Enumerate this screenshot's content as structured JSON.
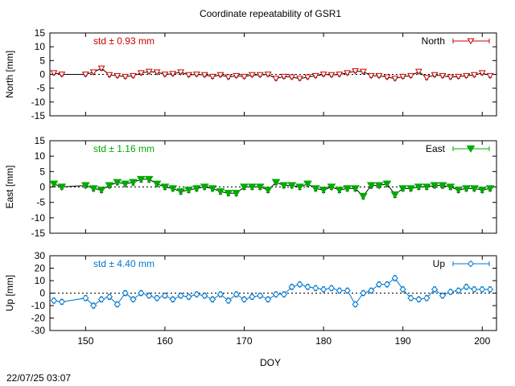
{
  "title": "Coordinate repeatability of GSR1",
  "xlabel": "DOY",
  "timestamp": "22/07/25 03:07",
  "x_ticks": [
    150,
    160,
    170,
    180,
    190,
    200
  ],
  "chart_data": [
    {
      "type": "line",
      "ylabel": "North [mm]",
      "legend": "North",
      "std_label": "std ± 0.93 mm",
      "color": "#cc0000",
      "secondary_color": "#000000",
      "marker": "triangle-down-open",
      "ylim": [
        -15,
        15
      ],
      "yticks": [
        -15,
        -10,
        -5,
        0,
        5,
        10,
        15
      ],
      "xlim": [
        145.5,
        201.8
      ],
      "legend_position": "top-right",
      "reference_line": 0,
      "x": [
        146,
        147,
        150,
        151,
        152,
        153,
        154,
        155,
        156,
        157,
        158,
        159,
        160,
        161,
        162,
        163,
        164,
        165,
        166,
        167,
        168,
        169,
        170,
        171,
        172,
        173,
        174,
        175,
        176,
        177,
        178,
        179,
        180,
        181,
        182,
        183,
        184,
        185,
        186,
        187,
        188,
        189,
        190,
        191,
        192,
        193,
        194,
        195,
        196,
        197,
        198,
        199,
        200,
        201
      ],
      "y": [
        0.5,
        0.0,
        0.0,
        0.8,
        2.2,
        -0.2,
        -0.5,
        -0.8,
        -0.5,
        0.5,
        1.0,
        0.8,
        0.0,
        0.2,
        0.8,
        -0.2,
        0.0,
        -0.2,
        -0.8,
        -0.2,
        -1.0,
        -0.5,
        -0.8,
        -0.2,
        -0.2,
        0.0,
        -1.5,
        -0.8,
        -1.0,
        -1.5,
        -1.0,
        -0.5,
        0.0,
        -0.2,
        0.0,
        0.5,
        1.2,
        1.0,
        -0.5,
        -0.5,
        -1.0,
        -1.5,
        -0.8,
        -0.5,
        1.0,
        -1.2,
        -0.2,
        -0.5,
        -1.0,
        -0.8,
        -0.5,
        -0.2,
        0.5,
        -0.5
      ],
      "err": [
        0.6,
        0.6,
        0.6,
        0.7,
        0.7,
        0.6,
        0.6,
        0.6,
        0.6,
        0.6,
        0.6,
        0.6,
        0.6,
        0.6,
        0.6,
        0.6,
        0.6,
        0.6,
        0.6,
        0.6,
        0.6,
        0.6,
        0.6,
        0.6,
        0.6,
        0.6,
        0.6,
        0.6,
        0.6,
        0.6,
        0.6,
        0.6,
        0.6,
        0.6,
        0.6,
        0.6,
        0.6,
        0.6,
        0.6,
        0.6,
        0.6,
        0.6,
        0.6,
        0.6,
        0.6,
        0.6,
        0.6,
        0.6,
        0.6,
        0.6,
        0.6,
        0.6,
        0.6,
        0.6
      ]
    },
    {
      "type": "line",
      "ylabel": "East [mm]",
      "legend": "East",
      "std_label": "std ± 1.16 mm",
      "color": "#00aa00",
      "secondary_color": "#000000",
      "marker": "triangle-down-filled",
      "ylim": [
        -15,
        15
      ],
      "yticks": [
        -15,
        -10,
        -5,
        0,
        5,
        10,
        15
      ],
      "xlim": [
        145.5,
        201.8
      ],
      "legend_position": "top-right",
      "reference_line": 0,
      "x": [
        146,
        147,
        150,
        151,
        152,
        153,
        154,
        155,
        156,
        157,
        158,
        159,
        160,
        161,
        162,
        163,
        164,
        165,
        166,
        167,
        168,
        169,
        170,
        171,
        172,
        173,
        174,
        175,
        176,
        177,
        178,
        179,
        180,
        181,
        182,
        183,
        184,
        185,
        186,
        187,
        188,
        189,
        190,
        191,
        192,
        193,
        194,
        195,
        196,
        197,
        198,
        199,
        200,
        201
      ],
      "y": [
        1.0,
        0.0,
        0.5,
        -0.5,
        -1.0,
        0.5,
        1.5,
        1.0,
        1.5,
        2.5,
        2.5,
        1.0,
        0.0,
        -0.5,
        -1.5,
        -1.0,
        -0.5,
        0.0,
        -0.5,
        -1.5,
        -2.0,
        -2.0,
        0.0,
        0.0,
        0.0,
        -1.0,
        1.5,
        0.5,
        0.5,
        0.0,
        1.0,
        -0.5,
        -1.0,
        0.0,
        -1.0,
        -0.5,
        -0.5,
        -3.0,
        0.5,
        0.5,
        1.0,
        -2.5,
        -0.5,
        -0.5,
        0.0,
        0.0,
        0.5,
        0.5,
        0.0,
        -1.0,
        -0.5,
        -0.5,
        -1.0,
        -0.5
      ],
      "err": [
        0.8,
        0.7,
        0.8,
        0.8,
        0.8,
        0.8,
        0.8,
        0.8,
        0.9,
        0.9,
        0.9,
        0.8,
        0.8,
        0.8,
        0.8,
        0.8,
        0.8,
        0.8,
        0.8,
        0.8,
        0.8,
        0.8,
        0.8,
        0.8,
        0.8,
        0.8,
        0.8,
        0.8,
        0.8,
        0.8,
        0.9,
        0.8,
        0.8,
        0.8,
        0.8,
        0.8,
        0.8,
        0.9,
        0.9,
        0.8,
        0.9,
        0.9,
        0.8,
        0.8,
        0.8,
        0.8,
        0.8,
        0.9,
        0.8,
        0.8,
        0.8,
        0.8,
        0.8,
        0.8
      ]
    },
    {
      "type": "line",
      "ylabel": "Up [mm]",
      "legend": "Up",
      "std_label": "std ± 4.40 mm",
      "color": "#0077cc",
      "secondary_color": "#0077cc",
      "marker": "diamond-open",
      "ylim": [
        -30,
        30
      ],
      "yticks": [
        -30,
        -20,
        -10,
        0,
        10,
        20,
        30
      ],
      "xlim": [
        145.5,
        201.8
      ],
      "legend_position": "top-right",
      "reference_line": 0,
      "x": [
        146,
        147,
        150,
        151,
        152,
        153,
        154,
        155,
        156,
        157,
        158,
        159,
        160,
        161,
        162,
        163,
        164,
        165,
        166,
        167,
        168,
        169,
        170,
        171,
        172,
        173,
        174,
        175,
        176,
        177,
        178,
        179,
        180,
        181,
        182,
        183,
        184,
        185,
        186,
        187,
        188,
        189,
        190,
        191,
        192,
        193,
        194,
        195,
        196,
        197,
        198,
        199,
        200,
        201
      ],
      "y": [
        -6,
        -7,
        -4,
        -10,
        -5,
        -3,
        -9,
        0,
        -5,
        0,
        -2,
        -4,
        -2,
        -5,
        -2,
        -3,
        -1,
        -2,
        -5,
        -1,
        -6,
        -1,
        -5,
        -3,
        -2,
        -5,
        -1,
        -1,
        5,
        7,
        5,
        4,
        3,
        4,
        2,
        2,
        -9,
        0,
        2,
        7,
        7,
        12,
        3,
        -4,
        -5,
        -4,
        3,
        -2,
        1,
        2,
        5,
        3,
        3,
        3
      ],
      "err": [
        2,
        2,
        2,
        2,
        2,
        2,
        2,
        2,
        2,
        2,
        2,
        2,
        2,
        2,
        2,
        2,
        2,
        2,
        2,
        2,
        2,
        2,
        2,
        2,
        2,
        2,
        2,
        2,
        2,
        2,
        2,
        2,
        2,
        2,
        2,
        2,
        2,
        2,
        2,
        2,
        2,
        2,
        2,
        2,
        2,
        2,
        2,
        2,
        2,
        2,
        2,
        2,
        2,
        2
      ]
    }
  ]
}
